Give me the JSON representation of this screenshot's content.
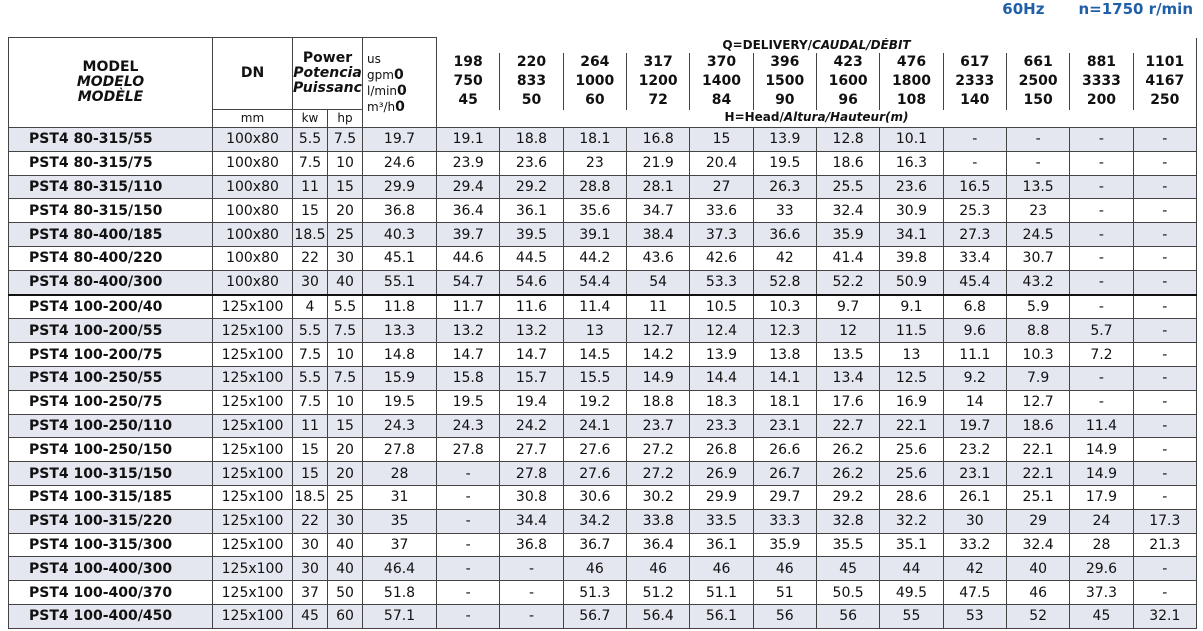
{
  "header": {
    "frequency": "60Hz",
    "speed": "n=1750 r/min"
  },
  "table": {
    "model_labels": [
      "MODEL",
      "MODELO",
      "MODÈLE"
    ],
    "dn_label": "DN",
    "dn_unit": "mm",
    "power_labels": [
      "Power",
      "Potencia",
      "Puissance"
    ],
    "kw_label": "kw",
    "hp_label": "hp",
    "us_label": "us",
    "gpm_label": "gpm",
    "lmin_label": "l/min",
    "m3h_label": "m³/h",
    "q_title": "Q=DELIVERY/",
    "q_title_italic": "CAUDAL/DÉBIT",
    "h_title": "H=Head/",
    "h_title_italic": "Altura/Hauteur(m)",
    "gpm": [
      0,
      198,
      220,
      264,
      317,
      370,
      396,
      423,
      476,
      617,
      661,
      881,
      1101
    ],
    "lmin": [
      0,
      750,
      833,
      1000,
      1200,
      1400,
      1500,
      1600,
      1800,
      2333,
      2500,
      3333,
      4167
    ],
    "m3h": [
      0,
      45,
      50,
      60,
      72,
      84,
      90,
      96,
      108,
      140,
      150,
      200,
      250
    ],
    "rows": [
      {
        "model": "PST4 80-315/55",
        "dn": "100x80",
        "kw": 5.5,
        "hp": 7.5,
        "head": [
          19.7,
          19.1,
          18.8,
          18.1,
          16.8,
          15,
          13.9,
          12.8,
          10.1,
          "-",
          "-",
          "-",
          "-"
        ]
      },
      {
        "model": "PST4 80-315/75",
        "dn": "100x80",
        "kw": 7.5,
        "hp": 10,
        "head": [
          24.6,
          23.9,
          23.6,
          23,
          21.9,
          20.4,
          19.5,
          18.6,
          16.3,
          "-",
          "-",
          "-",
          "-"
        ]
      },
      {
        "model": "PST4 80-315/110",
        "dn": "100x80",
        "kw": 11,
        "hp": 15,
        "head": [
          29.9,
          29.4,
          29.2,
          28.8,
          28.1,
          27,
          26.3,
          25.5,
          23.6,
          16.5,
          13.5,
          "-",
          "-"
        ]
      },
      {
        "model": "PST4 80-315/150",
        "dn": "100x80",
        "kw": 15,
        "hp": 20,
        "head": [
          36.8,
          36.4,
          36.1,
          35.6,
          34.7,
          33.6,
          33,
          32.4,
          30.9,
          25.3,
          23,
          "-",
          "-"
        ]
      },
      {
        "model": "PST4 80-400/185",
        "dn": "100x80",
        "kw": 18.5,
        "hp": 25,
        "head": [
          40.3,
          39.7,
          39.5,
          39.1,
          38.4,
          37.3,
          36.6,
          35.9,
          34.1,
          27.3,
          24.5,
          "-",
          "-"
        ]
      },
      {
        "model": "PST4 80-400/220",
        "dn": "100x80",
        "kw": 22,
        "hp": 30,
        "head": [
          45.1,
          44.6,
          44.5,
          44.2,
          43.6,
          42.6,
          42,
          41.4,
          39.8,
          33.4,
          30.7,
          "-",
          "-"
        ]
      },
      {
        "model": "PST4 80-400/300",
        "dn": "100x80",
        "kw": 30,
        "hp": 40,
        "head": [
          55.1,
          54.7,
          54.6,
          54.4,
          54,
          53.3,
          52.8,
          52.2,
          50.9,
          45.4,
          43.2,
          "-",
          "-"
        ]
      },
      {
        "model": "PST4 100-200/40",
        "dn": "125x100",
        "kw": 4,
        "hp": 5.5,
        "head": [
          11.8,
          11.7,
          11.6,
          11.4,
          11,
          10.5,
          10.3,
          9.7,
          9.1,
          6.8,
          5.9,
          "-",
          "-"
        ]
      },
      {
        "model": "PST4 100-200/55",
        "dn": "125x100",
        "kw": 5.5,
        "hp": 7.5,
        "head": [
          13.3,
          13.2,
          13.2,
          13,
          12.7,
          12.4,
          12.3,
          12,
          11.5,
          9.6,
          8.8,
          5.7,
          "-"
        ]
      },
      {
        "model": "PST4 100-200/75",
        "dn": "125x100",
        "kw": 7.5,
        "hp": 10,
        "head": [
          14.8,
          14.7,
          14.7,
          14.5,
          14.2,
          13.9,
          13.8,
          13.5,
          13,
          11.1,
          10.3,
          7.2,
          "-"
        ]
      },
      {
        "model": "PST4 100-250/55",
        "dn": "125x100",
        "kw": 5.5,
        "hp": 7.5,
        "head": [
          15.9,
          15.8,
          15.7,
          15.5,
          14.9,
          14.4,
          14.1,
          13.4,
          12.5,
          9.2,
          7.9,
          "-",
          "-"
        ]
      },
      {
        "model": "PST4 100-250/75",
        "dn": "125x100",
        "kw": 7.5,
        "hp": 10,
        "head": [
          19.5,
          19.5,
          19.4,
          19.2,
          18.8,
          18.3,
          18.1,
          17.6,
          16.9,
          14,
          12.7,
          "-",
          "-"
        ]
      },
      {
        "model": "PST4 100-250/110",
        "dn": "125x100",
        "kw": 11,
        "hp": 15,
        "head": [
          24.3,
          24.3,
          24.2,
          24.1,
          23.7,
          23.3,
          23.1,
          22.7,
          22.1,
          19.7,
          18.6,
          11.4,
          "-"
        ]
      },
      {
        "model": "PST4 100-250/150",
        "dn": "125x100",
        "kw": 15,
        "hp": 20,
        "head": [
          27.8,
          27.8,
          27.7,
          27.6,
          27.2,
          26.8,
          26.6,
          26.2,
          25.6,
          23.2,
          22.1,
          14.9,
          "-"
        ]
      },
      {
        "model": "PST4 100-315/150",
        "dn": "125x100",
        "kw": 15,
        "hp": 20,
        "head": [
          28,
          "-",
          27.8,
          27.6,
          27.2,
          26.9,
          26.7,
          26.2,
          25.6,
          23.1,
          22.1,
          14.9,
          "-"
        ]
      },
      {
        "model": "PST4 100-315/185",
        "dn": "125x100",
        "kw": 18.5,
        "hp": 25,
        "head": [
          31,
          "-",
          30.8,
          30.6,
          30.2,
          29.9,
          29.7,
          29.2,
          28.6,
          26.1,
          25.1,
          17.9,
          "-"
        ]
      },
      {
        "model": "PST4 100-315/220",
        "dn": "125x100",
        "kw": 22,
        "hp": 30,
        "head": [
          35,
          "-",
          34.4,
          34.2,
          33.8,
          33.5,
          33.3,
          32.8,
          32.2,
          30,
          29,
          24,
          17.3
        ]
      },
      {
        "model": "PST4 100-315/300",
        "dn": "125x100",
        "kw": 30,
        "hp": 40,
        "head": [
          37,
          "-",
          36.8,
          36.7,
          36.4,
          36.1,
          35.9,
          35.5,
          35.1,
          33.2,
          32.4,
          28,
          21.3
        ]
      },
      {
        "model": "PST4 100-400/300",
        "dn": "125x100",
        "kw": 30,
        "hp": 40,
        "head": [
          46.4,
          "-",
          "-",
          46,
          46,
          46,
          46,
          45,
          44,
          42,
          40,
          29.6,
          "-"
        ]
      },
      {
        "model": "PST4 100-400/370",
        "dn": "125x100",
        "kw": 37,
        "hp": 50,
        "head": [
          51.8,
          "-",
          "-",
          51.3,
          51.2,
          51.1,
          51,
          50.5,
          49.5,
          47.5,
          46,
          37.3,
          "-"
        ]
      },
      {
        "model": "PST4 100-400/450",
        "dn": "125x100",
        "kw": 45,
        "hp": 60,
        "head": [
          57.1,
          "-",
          "-",
          56.7,
          56.4,
          56.1,
          56,
          56,
          55,
          53,
          52,
          45,
          32.1
        ]
      }
    ]
  }
}
